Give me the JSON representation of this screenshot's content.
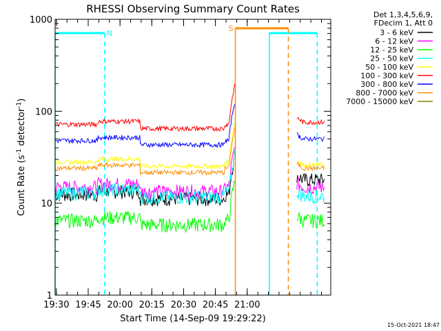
{
  "chart_data": {
    "type": "line",
    "title": "RHESSI Observing Summary Count Rates",
    "xlabel": "Start Time (14-Sep-09 19:29:22)",
    "ylabel_main": "Count Rate (s",
    "ylabel_sup1": "-1",
    "ylabel_mid": " detector",
    "ylabel_sup2": "-1",
    "ylabel_end": ")",
    "yscale": "log",
    "ylim": [
      1,
      1000
    ],
    "xlim_min": [
      0,
      130
    ],
    "x_ticks": [
      {
        "label": "19:30",
        "min": 0.6
      },
      {
        "label": "19:45",
        "min": 15.6
      },
      {
        "label": "20:00",
        "min": 30.6
      },
      {
        "label": "20:15",
        "min": 45.6
      },
      {
        "label": "20:30",
        "min": 60.6
      },
      {
        "label": "20:45",
        "min": 75.6
      },
      {
        "label": "21:00",
        "min": 90.6
      }
    ],
    "y_ticks": [
      {
        "label": "1",
        "value": 1
      },
      {
        "label": "10",
        "value": 10
      },
      {
        "label": "100",
        "value": 100
      },
      {
        "label": "1000",
        "value": 1000
      }
    ],
    "legend_header": [
      "Det 1,3,4,5,6,9,",
      "FDecim 1, Att 0"
    ],
    "legend_position": "top-right",
    "series": [
      {
        "name": "3 - 6 keV",
        "color": "#000000",
        "pre": 12.5,
        "post": 18
      },
      {
        "name": "6 - 12 keV",
        "color": "#ff00ff",
        "pre": 15,
        "post": 15
      },
      {
        "name": "12 - 25 keV",
        "color": "#00ff00",
        "pre": 6.5,
        "post": 6.5
      },
      {
        "name": "25 - 50 keV",
        "color": "#00ffff",
        "pre": 13,
        "post": 12
      },
      {
        "name": "50 - 100 keV",
        "color": "#ffff00",
        "pre": 28,
        "post": 26
      },
      {
        "name": "100 - 300 keV",
        "color": "#ff0000",
        "pre": 72,
        "post": 76
      },
      {
        "name": "300 - 800 keV",
        "color": "#0000ff",
        "pre": 48,
        "post": 50
      },
      {
        "name": "800 - 7000 keV",
        "color": "#ff8c00",
        "pre": 24,
        "post": 24
      },
      {
        "name": "7000 - 15000 keV",
        "color": "#808000",
        "pre": null,
        "post": null
      }
    ],
    "gap_min": [
      85,
      114
    ],
    "night_intervals": [
      [
        0,
        23.3
      ],
      [
        101,
        123.6
      ]
    ],
    "saa_intervals": [
      [
        85,
        110
      ]
    ],
    "night_label": "N",
    "saa_label": "S",
    "night_color": "#00ffff",
    "saa_color": "#ff8c00",
    "timestamp": "15-Oct-2021 18:47"
  }
}
